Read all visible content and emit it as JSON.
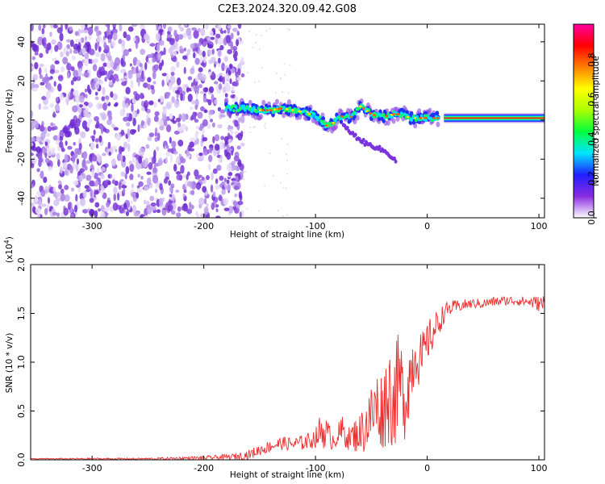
{
  "page_title": "C2E3.2024.320.09.42.G08",
  "chart_data": [
    {
      "type": "heatmap",
      "xlabel": "Height of straight line (km)",
      "ylabel": "Frequency (Hz)",
      "xlim": [
        -355,
        105
      ],
      "ylim": [
        -50,
        49
      ],
      "xticks": [
        -300,
        -200,
        -100,
        0,
        100
      ],
      "yticks": [
        -40,
        -20,
        0,
        20,
        40
      ],
      "noise_region": [
        -355,
        -165
      ],
      "ridge": {
        "x": [
          -180,
          -165,
          -150,
          -140,
          -130,
          -120,
          -110,
          -100,
          -95,
          -90,
          -85,
          -80,
          -75,
          -70,
          -65,
          -60,
          -55,
          -50,
          -45,
          -40,
          -35,
          -30,
          -25,
          -20,
          -15,
          -10,
          -5,
          0,
          10,
          20,
          40,
          60,
          80,
          100,
          105
        ],
        "freq": [
          6,
          6,
          5,
          5,
          6,
          5,
          4,
          2,
          0,
          -3,
          -2,
          1,
          2,
          1,
          3,
          7,
          5,
          3,
          2,
          2,
          2,
          3,
          3,
          2,
          1,
          1,
          1,
          1,
          1,
          1,
          1,
          1,
          1,
          1,
          1
        ]
      },
      "branch": {
        "x": [
          -75,
          -65,
          -55,
          -45,
          -35,
          -28
        ],
        "freq": [
          -3,
          -8,
          -12,
          -14,
          -17,
          -21
        ]
      },
      "colorbar": {
        "label": "Normalized spectral amplitude",
        "ticks": [
          0.0,
          0.2,
          0.4,
          0.6,
          0.8
        ],
        "range": [
          0.0,
          0.98
        ],
        "colors": [
          "#ffffff",
          "#8a2be2",
          "#2020ff",
          "#00e5ff",
          "#00ff40",
          "#aaff00",
          "#ffff00",
          "#ff8000",
          "#ff0000",
          "#ff00a0"
        ]
      }
    },
    {
      "type": "line",
      "xlabel": "Height of straight line (km)",
      "ylabel": "SNR (10 * v/v)",
      "multiplier": "(x10",
      "multiplier_exp": "4",
      "multiplier_close": ")",
      "xlim": [
        -355,
        105
      ],
      "ylim": [
        0,
        2.0
      ],
      "xticks": [
        -300,
        -200,
        -100,
        0,
        100
      ],
      "yticks": [
        "0.0",
        "0.5",
        "1.0",
        "1.5",
        "2.0"
      ],
      "color": "#ee2e2e",
      "x": [
        -355,
        -300,
        -250,
        -200,
        -175,
        -160,
        -150,
        -140,
        -130,
        -120,
        -110,
        -100,
        -95,
        -90,
        -85,
        -80,
        -75,
        -70,
        -65,
        -60,
        -55,
        -50,
        -45,
        -40,
        -35,
        -30,
        -25,
        -20,
        -15,
        -10,
        -5,
        0,
        5,
        10,
        15,
        20,
        30,
        40,
        50,
        60,
        70,
        80,
        90,
        100,
        105
      ],
      "values": [
        0.01,
        0.01,
        0.01,
        0.02,
        0.03,
        0.05,
        0.1,
        0.14,
        0.17,
        0.16,
        0.18,
        0.22,
        0.3,
        0.28,
        0.2,
        0.25,
        0.3,
        0.22,
        0.25,
        0.28,
        0.35,
        0.45,
        0.55,
        0.5,
        0.7,
        0.6,
        0.8,
        0.6,
        0.9,
        1.1,
        1.0,
        1.2,
        1.3,
        1.4,
        1.5,
        1.55,
        1.58,
        1.6,
        1.6,
        1.62,
        1.63,
        1.63,
        1.62,
        1.6,
        1.6
      ],
      "amplitude": [
        0.005,
        0.008,
        0.01,
        0.02,
        0.03,
        0.05,
        0.06,
        0.06,
        0.07,
        0.07,
        0.08,
        0.1,
        0.2,
        0.15,
        0.1,
        0.12,
        0.18,
        0.12,
        0.18,
        0.2,
        0.3,
        0.35,
        0.4,
        0.4,
        0.55,
        0.5,
        0.55,
        0.4,
        0.4,
        0.3,
        0.3,
        0.2,
        0.2,
        0.15,
        0.1,
        0.08,
        0.06,
        0.05,
        0.05,
        0.05,
        0.05,
        0.05,
        0.05,
        0.08,
        0.1
      ]
    }
  ]
}
